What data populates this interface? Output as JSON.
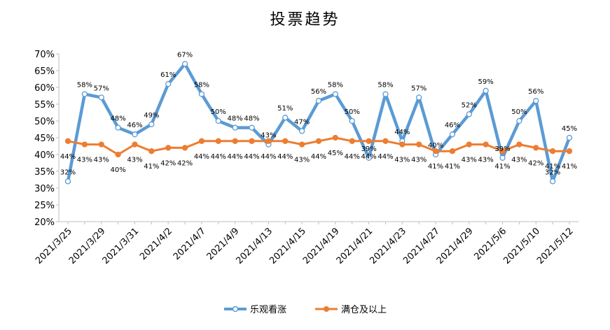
{
  "chart_data": {
    "type": "line",
    "title": "投票趋势",
    "xlabel": "",
    "ylabel": "",
    "ylim": [
      20,
      70
    ],
    "yticks": [
      "20%",
      "25%",
      "30%",
      "35%",
      "40%",
      "45%",
      "50%",
      "55%",
      "60%",
      "65%",
      "70%"
    ],
    "x_tick_labels": [
      "2021/3/25",
      "2021/3/29",
      "2021/3/31",
      "2021/4/2",
      "2021/4/7",
      "2021/4/9",
      "2021/4/13",
      "2021/4/15",
      "2021/4/19",
      "2021/4/21",
      "2021/4/23",
      "2021/4/27",
      "2021/4/29",
      "2021/5/6",
      "2021/5/10",
      "2021/5/12"
    ],
    "grid": false,
    "legend_position": "bottom",
    "series": [
      {
        "name": "乐观看涨",
        "color": "#5B9BD5",
        "marker": "circle-open",
        "values": [
          32,
          58,
          57,
          48,
          46,
          49,
          61,
          67,
          58,
          50,
          48,
          48,
          43,
          51,
          47,
          56,
          58,
          50,
          39,
          58,
          44,
          57,
          40,
          46,
          52,
          59,
          39,
          50,
          56,
          32,
          45
        ],
        "labels": [
          "32%",
          "58%",
          "57%",
          "48%",
          "46%",
          "49%",
          "61%",
          "67%",
          "58%",
          "50%",
          "48%",
          "48%",
          "43%",
          "51%",
          "47%",
          "56%",
          "58%",
          "50%",
          "39%",
          "58%",
          "44%",
          "57%",
          "40%",
          "46%",
          "52%",
          "59%",
          "39%",
          "50%",
          "56%",
          "32%",
          "45%"
        ]
      },
      {
        "name": "满仓及以上",
        "color": "#ED7D31",
        "marker": "circle-filled",
        "values": [
          44,
          43,
          43,
          40,
          43,
          41,
          42,
          42,
          44,
          44,
          44,
          44,
          44,
          44,
          43,
          44,
          45,
          44,
          44,
          44,
          43,
          43,
          41,
          41,
          43,
          43,
          41,
          43,
          42,
          41,
          41
        ],
        "labels": [
          "44%",
          "43%",
          "43%",
          "40%",
          "43%",
          "41%",
          "42%",
          "42%",
          "44%",
          "44%",
          "44%",
          "44%",
          "44%",
          "44%",
          "43%",
          "44%",
          "45%",
          "44%",
          "44%",
          "44%",
          "43%",
          "43%",
          "41%",
          "41%",
          "43%",
          "43%",
          "41%",
          "43%",
          "42%",
          "41%",
          "41%"
        ]
      }
    ]
  }
}
